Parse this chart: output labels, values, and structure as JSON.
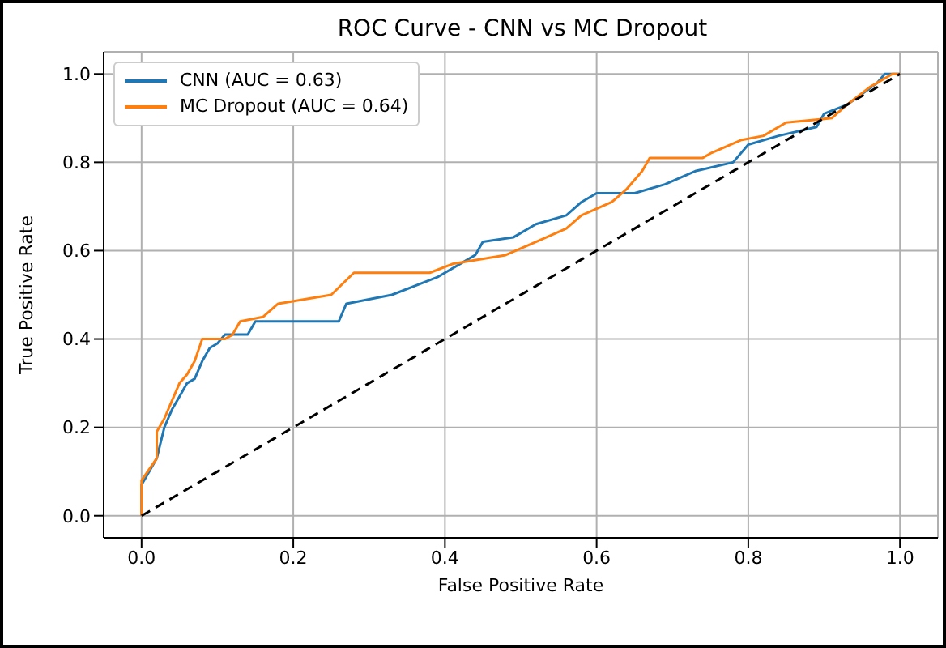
{
  "chart_data": {
    "type": "line",
    "title": "ROC Curve - CNN vs MC Dropout",
    "xlabel": "False Positive Rate",
    "ylabel": "True Positive Rate",
    "xlim": [
      -0.05,
      1.05
    ],
    "ylim": [
      -0.05,
      1.05
    ],
    "xticks": [
      {
        "value": 0,
        "label": "0.0"
      },
      {
        "value": 0.2,
        "label": "0.2"
      },
      {
        "value": 0.4,
        "label": "0.4"
      },
      {
        "value": 0.6,
        "label": "0.6"
      },
      {
        "value": 0.8,
        "label": "0.8"
      },
      {
        "value": 1,
        "label": "1.0"
      }
    ],
    "yticks": [
      {
        "value": 0,
        "label": "0.0"
      },
      {
        "value": 0.2,
        "label": "0.2"
      },
      {
        "value": 0.4,
        "label": "0.4"
      },
      {
        "value": 0.6,
        "label": "0.6"
      },
      {
        "value": 0.8,
        "label": "0.8"
      },
      {
        "value": 1,
        "label": "1.0"
      }
    ],
    "grid": true,
    "legend": "top left",
    "marker": "none",
    "series": [
      {
        "name": "CNN (AUC = 0.63)",
        "color": "#1f77b4",
        "x": [
          0,
          0,
          0.01,
          0.02,
          0.03,
          0.04,
          0.05,
          0.06,
          0.07,
          0.08,
          0.09,
          0.1,
          0.11,
          0.14,
          0.15,
          0.26,
          0.27,
          0.33,
          0.39,
          0.44,
          0.45,
          0.49,
          0.52,
          0.56,
          0.58,
          0.6,
          0.65,
          0.69,
          0.73,
          0.78,
          0.8,
          0.84,
          0.89,
          0.9,
          0.93,
          0.97,
          0.98,
          1
        ],
        "values": [
          0,
          0.07,
          0.1,
          0.13,
          0.2,
          0.24,
          0.27,
          0.3,
          0.31,
          0.35,
          0.38,
          0.39,
          0.41,
          0.41,
          0.44,
          0.44,
          0.48,
          0.5,
          0.54,
          0.59,
          0.62,
          0.63,
          0.66,
          0.68,
          0.71,
          0.73,
          0.73,
          0.75,
          0.78,
          0.8,
          0.84,
          0.86,
          0.88,
          0.91,
          0.93,
          0.98,
          1,
          1
        ]
      },
      {
        "name": "MC Dropout (AUC = 0.64)",
        "color": "#ff7f0e",
        "x": [
          0,
          0,
          0.02,
          0.02,
          0.03,
          0.04,
          0.05,
          0.06,
          0.07,
          0.08,
          0.11,
          0.12,
          0.13,
          0.16,
          0.18,
          0.25,
          0.28,
          0.38,
          0.41,
          0.48,
          0.52,
          0.56,
          0.58,
          0.62,
          0.64,
          0.66,
          0.67,
          0.74,
          0.75,
          0.79,
          0.82,
          0.85,
          0.91,
          0.93,
          0.96,
          0.99,
          1
        ],
        "values": [
          0,
          0.08,
          0.13,
          0.19,
          0.22,
          0.26,
          0.3,
          0.32,
          0.35,
          0.4,
          0.4,
          0.41,
          0.44,
          0.45,
          0.48,
          0.5,
          0.55,
          0.55,
          0.57,
          0.59,
          0.62,
          0.65,
          0.68,
          0.71,
          0.74,
          0.78,
          0.81,
          0.81,
          0.82,
          0.85,
          0.86,
          0.89,
          0.9,
          0.93,
          0.97,
          1,
          1
        ]
      },
      {
        "color": "#000000",
        "line_style": "dashed",
        "x": [
          0,
          1
        ],
        "values": [
          0,
          1
        ]
      }
    ]
  }
}
